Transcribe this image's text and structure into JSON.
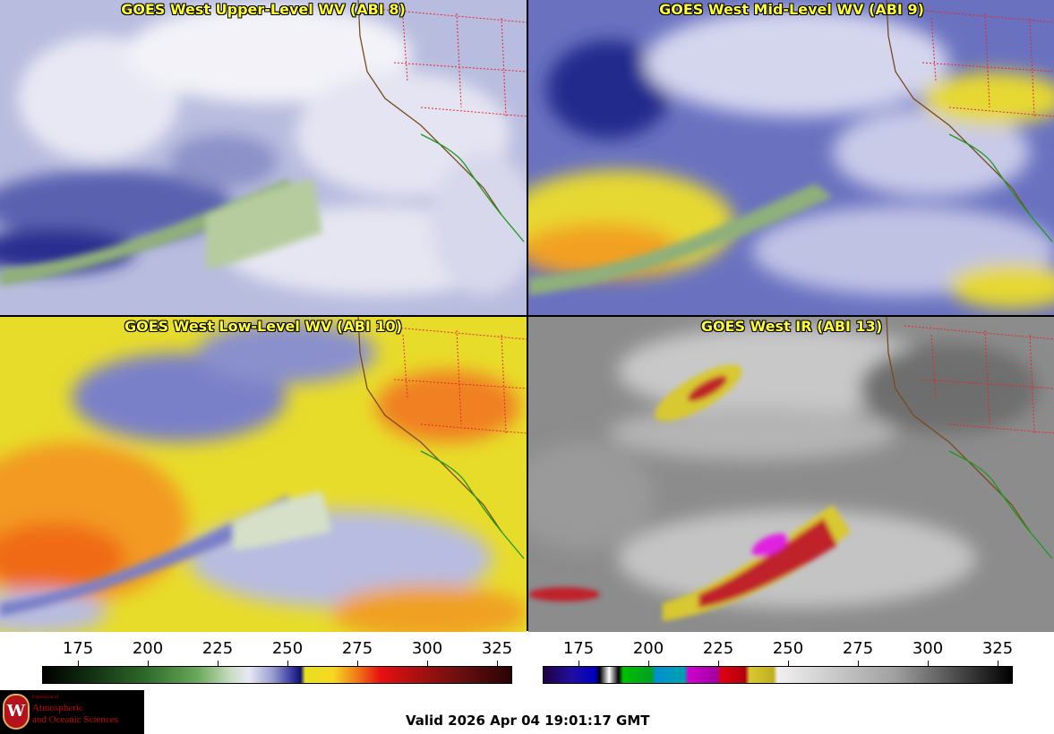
{
  "panels": [
    {
      "title": "GOES West Upper-Level WV (ABI 8)",
      "palette": "wv-upper"
    },
    {
      "title": "GOES West Mid-Level WV (ABI 9)",
      "palette": "wv-mid"
    },
    {
      "title": "GOES West Low-Level WV (ABI 10)",
      "palette": "wv-low"
    },
    {
      "title": "GOES West IR (ABI 13)",
      "palette": "ir"
    }
  ],
  "colorbars": {
    "wv": {
      "ticks": [
        "175",
        "200",
        "225",
        "250",
        "275",
        "300",
        "325"
      ]
    },
    "ir": {
      "ticks": [
        "175",
        "200",
        "225",
        "250",
        "275",
        "300",
        "325"
      ]
    }
  },
  "logo": {
    "small_text": "Department of",
    "line1": "Atmospheric",
    "line2": "and Oceanic Sciences",
    "seal_letter": "W"
  },
  "valid_time": "Valid 2026 Apr 04 19:01:17 GMT",
  "colors": {
    "title_text": "#ffff33",
    "state_borders": "#e8262b",
    "coastline": "#7a4a1e",
    "mexico_coast": "#1a9a1a"
  }
}
